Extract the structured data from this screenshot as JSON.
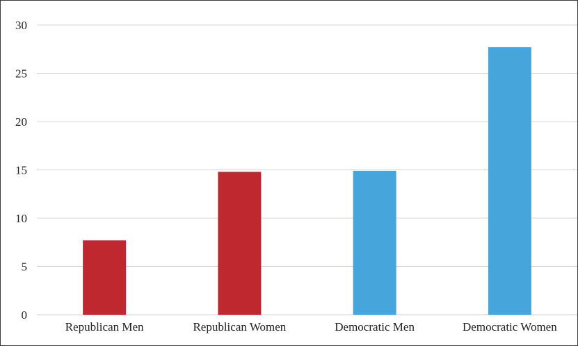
{
  "chart_data": {
    "type": "bar",
    "title": "",
    "xlabel": "",
    "ylabel": "",
    "categories": [
      "Republican Men",
      "Republican Women",
      "Democratic Men",
      "Democratic Women"
    ],
    "values": [
      7.7,
      14.8,
      14.9,
      27.7
    ],
    "colors": [
      "#c0282f",
      "#c0282f",
      "#46a5db",
      "#46a5db"
    ],
    "ylim": [
      0,
      30
    ],
    "yticks": [
      0,
      5,
      10,
      15,
      20,
      25,
      30
    ],
    "grid": true,
    "legend": "none"
  }
}
